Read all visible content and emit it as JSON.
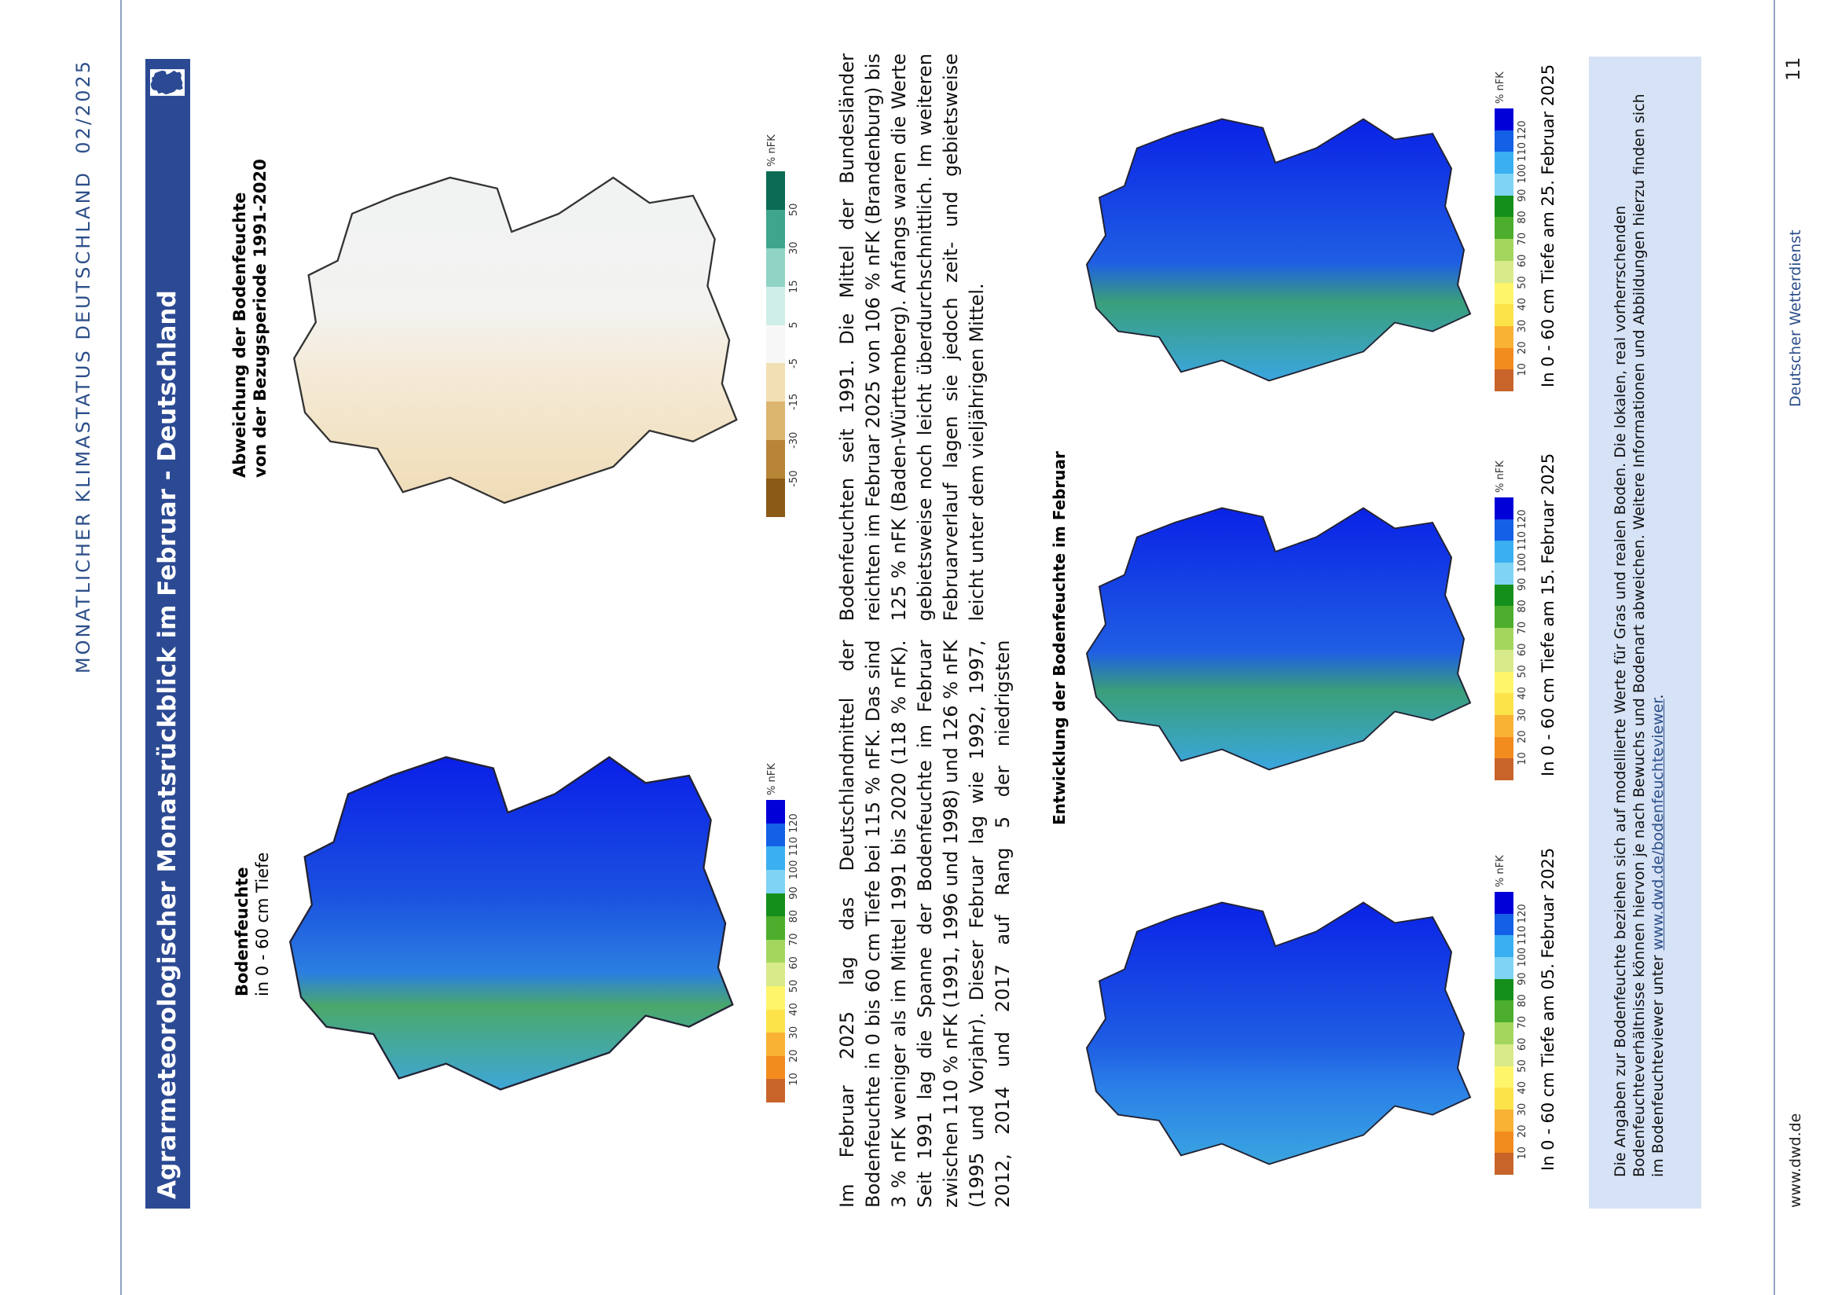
{
  "header": {
    "title": "MONATLICHER KLIMASTATUS DEUTSCHLAND",
    "issue": "02/2025"
  },
  "banner": {
    "title": "Agrarmeteorologischer Monatsrückblick im Februar - Deutschland"
  },
  "maps": {
    "current": {
      "title": "Bodenfeuchte",
      "subtitle": "in 0 - 60 cm Tiefe"
    },
    "anomaly": {
      "title": "Abweichung der Bodenfeuchte",
      "subtitle": "von der Bezugsperiode 1991-2020"
    }
  },
  "legends": {
    "soil": {
      "labels": [
        "10",
        "20",
        "30",
        "40",
        "50",
        "60",
        "70",
        "80",
        "90",
        "100",
        "110",
        "120"
      ],
      "unit": "% nFK",
      "colors": [
        "#c8642a",
        "#f28c1e",
        "#f9b233",
        "#fde34a",
        "#fff56b",
        "#d8ea8a",
        "#a4d65e",
        "#4cae2c",
        "#158f1c",
        "#7fd3f5",
        "#3ab0f0",
        "#1460e6",
        "#0000d8"
      ]
    },
    "anomaly": {
      "labels": [
        "-50",
        "-30",
        "-15",
        "-5",
        "5",
        "15",
        "30",
        "50"
      ],
      "unit": "% nFK",
      "colors": [
        "#8b5a16",
        "#b88537",
        "#dcb56f",
        "#f2dfb3",
        "#f7f7f7",
        "#cfeee7",
        "#8fd4c4",
        "#3fa58d",
        "#0b6b55"
      ]
    }
  },
  "body": {
    "text": "Im Februar 2025 lag das Deutschlandmittel der Bodenfeuchte in 0 bis 60 cm Tiefe bei 115 % nFK. Das sind 3 % nFK weniger als im Mittel 1991 bis 2020 (118 % nFK). Seit 1991 lag die Spanne der Bodenfeuchte im Februar zwischen 110 % nFK (1991, 1996 und 1998) und 126 % nFK (1995 und Vorjahr). Dieser Februar lag wie 1992, 1997, 2012, 2014 und 2017 auf Rang 5 der niedrigsten Bodenfeuchten seit 1991. Die Mittel der Bundesländer reichten im Februar 2025 von 106 % nFK (Brandenburg) bis 125 % nFK (Baden-Württemberg). Anfangs waren die Werte gebietsweise noch leicht überdurchschnittlich. Im weiteren Februarverlauf lagen sie jedoch zeit- und gebietsweise leicht unter dem vieljährigen Mittel."
  },
  "development": {
    "title": "Entwicklung der Bodenfeuchte im Februar",
    "captions": [
      "In 0 - 60 cm Tiefe am 05. Februar 2025",
      "In 0 - 60 cm Tiefe am 15. Februar 2025",
      "In 0 - 60 cm Tiefe am 25. Februar 2025"
    ]
  },
  "note": {
    "text": "Die Angaben zur Bodenfeuchte beziehen sich auf modellierte Werte für Gras und realen Boden. Die lokalen, real vorherrschenden Bodenfeuchteverhältnisse können hiervon je nach Bewuchs und Bodenart abweichen. Weitere Informationen und Abbildungen hierzu finden sich im Bodenfeuchteviewer unter ",
    "link": "www.dwd.de/bodenfeuchteviewer",
    "end": "."
  },
  "footer": {
    "url": "www.dwd.de",
    "org": "Deutscher Wetterdienst",
    "page": "11"
  }
}
